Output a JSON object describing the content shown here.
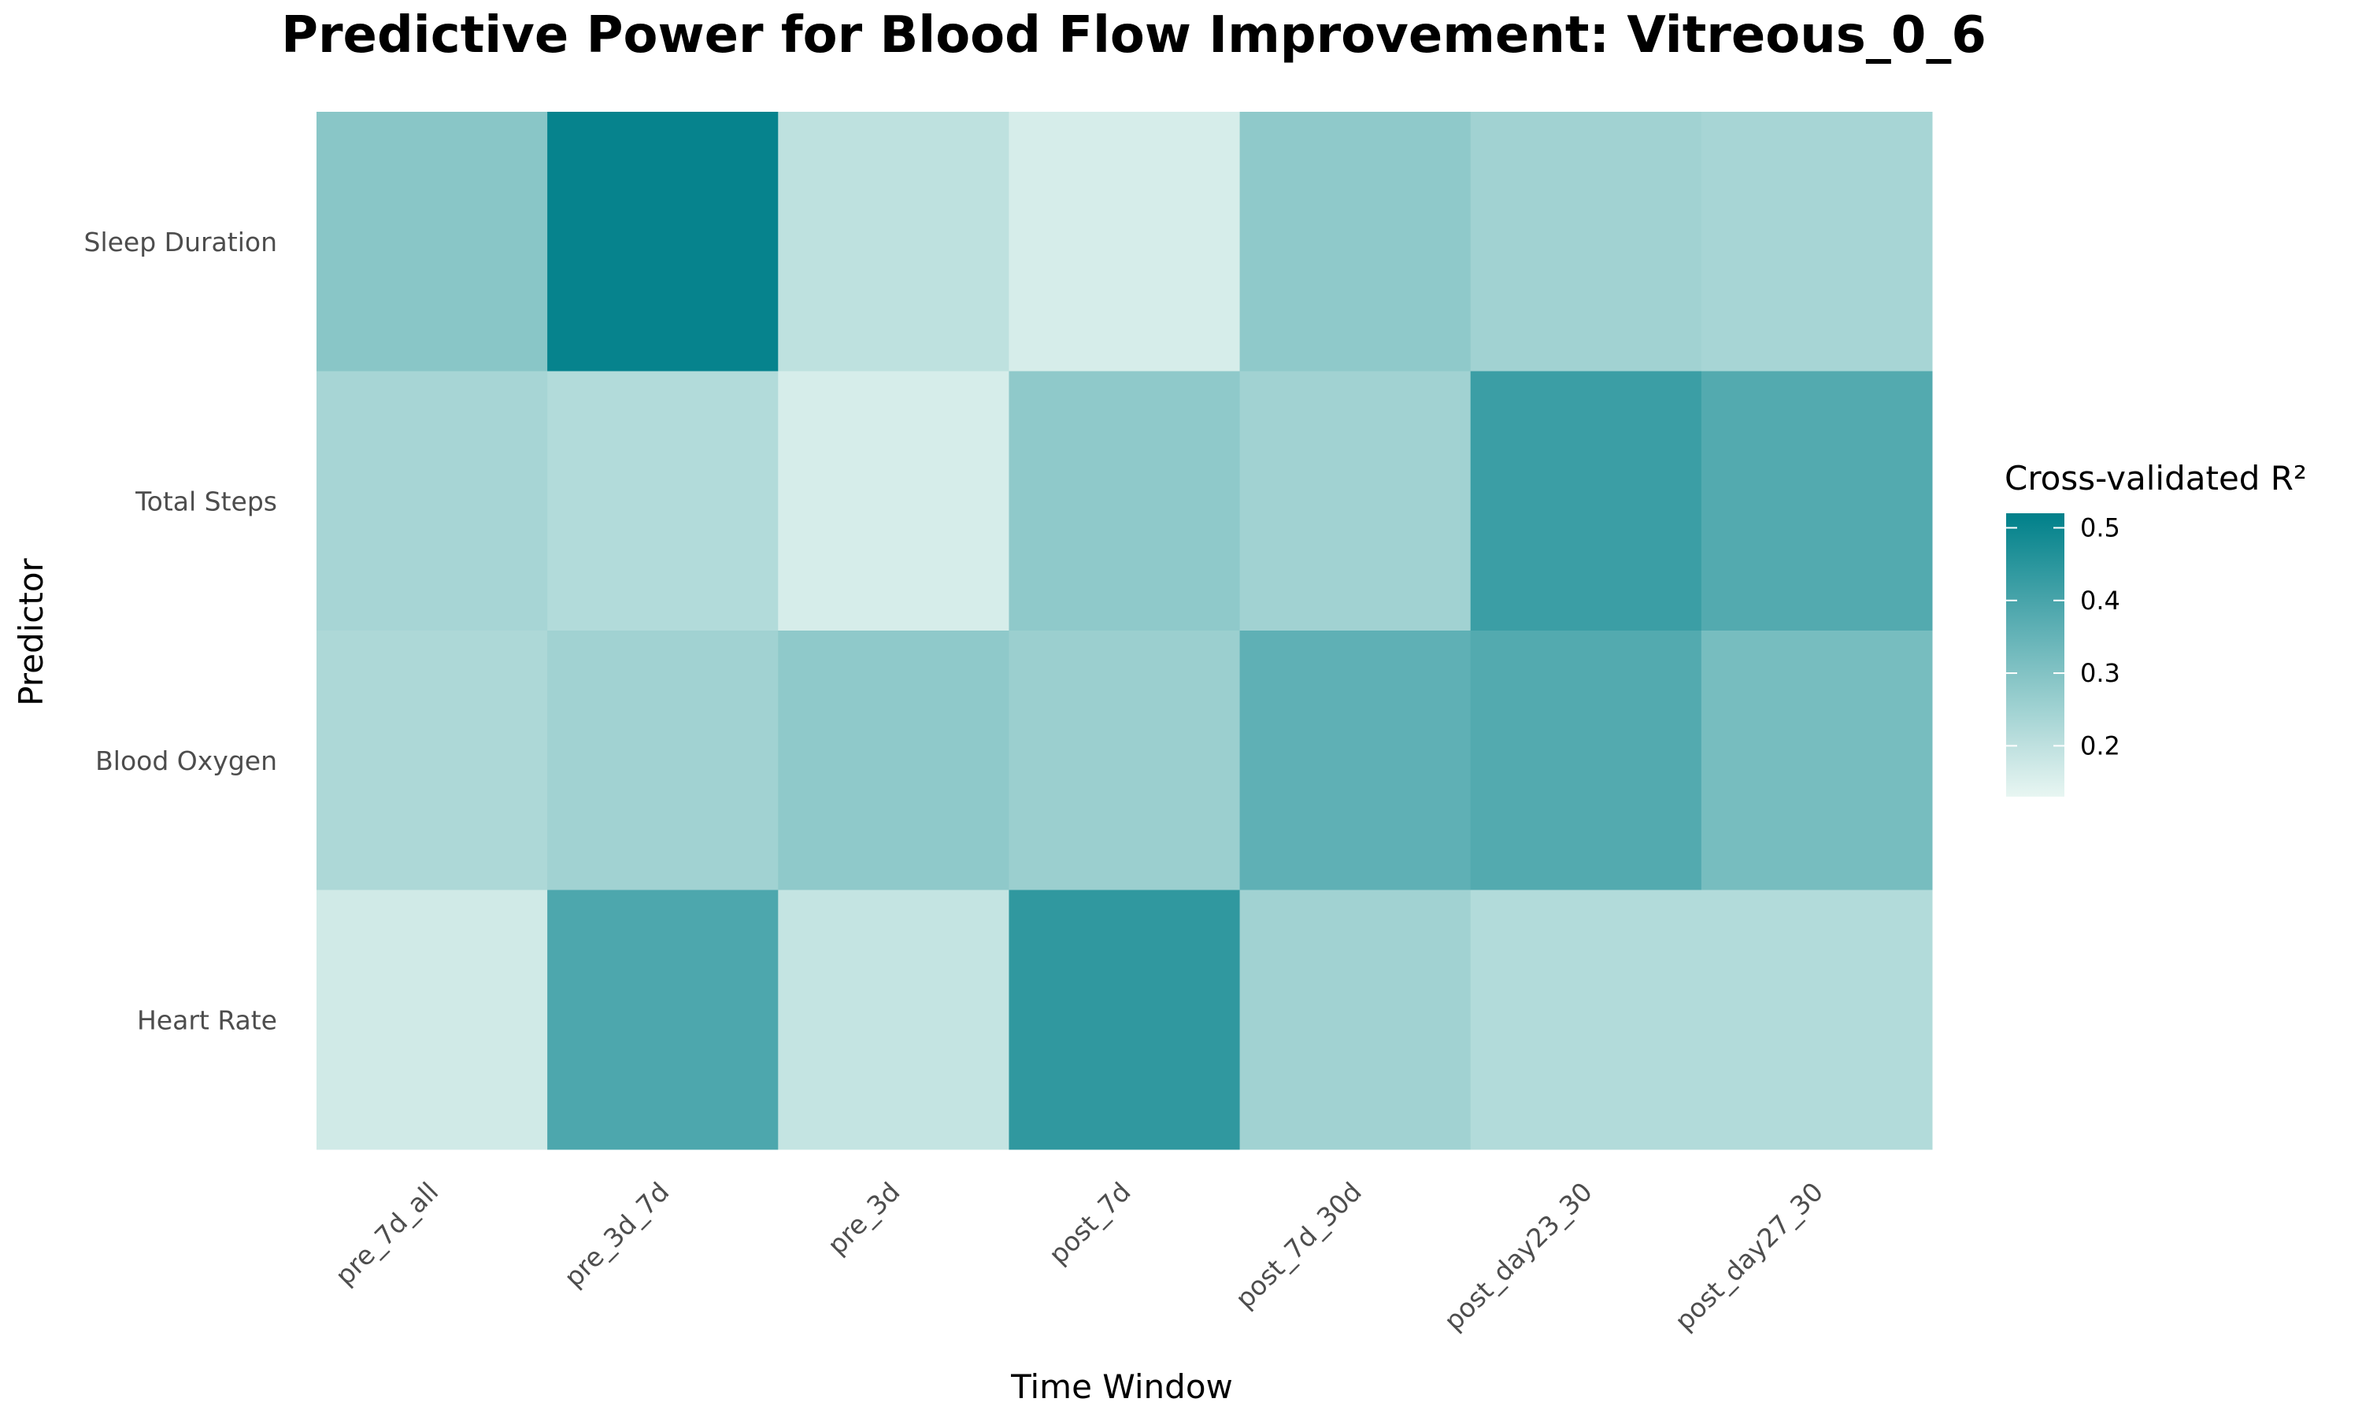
{
  "chart_data": {
    "type": "heatmap",
    "title": "Predictive Power for Blood Flow Improvement: Vitreous_0_6",
    "xlabel": "Time Window",
    "ylabel": "Predictor",
    "x_categories": [
      "pre_7d_all",
      "pre_3d_7d",
      "pre_3d",
      "post_7d",
      "post_7d_30d",
      "post_day23_30",
      "post_day27_30"
    ],
    "y_categories": [
      "Sleep Duration",
      "Total Steps",
      "Blood Oxygen",
      "Heart Rate"
    ],
    "values": [
      [
        0.29,
        0.51,
        0.2,
        0.16,
        0.28,
        0.25,
        0.24
      ],
      [
        0.24,
        0.22,
        0.16,
        0.28,
        0.25,
        0.42,
        0.38
      ],
      [
        0.23,
        0.25,
        0.28,
        0.26,
        0.36,
        0.38,
        0.32
      ],
      [
        0.17,
        0.39,
        0.19,
        0.44,
        0.25,
        0.22,
        0.22
      ]
    ],
    "legend": {
      "title": "Cross-validated R²",
      "position": "right",
      "ticks": [
        0.2,
        0.3,
        0.4,
        0.5
      ],
      "tick_labels": [
        "0.2",
        "0.3",
        "0.4",
        "0.5"
      ],
      "range": [
        0.13,
        0.52
      ]
    },
    "color_low": "#e8f6f2",
    "color_high": "#00808a",
    "grid": false
  }
}
